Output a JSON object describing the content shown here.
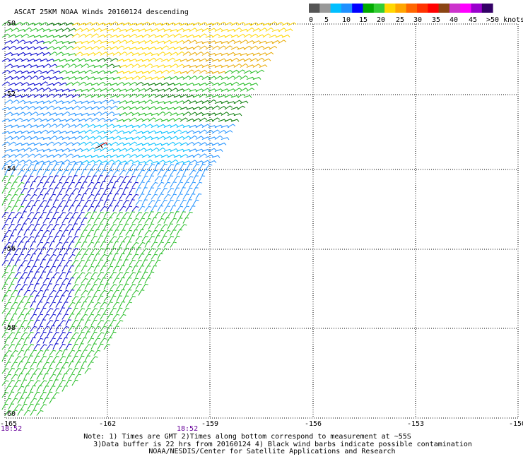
{
  "title": "ASCAT 25KM NOAA Winds 20160124 descending",
  "colorbar": {
    "colors": [
      "#555555",
      "#999999",
      "#00bfff",
      "#1e90ff",
      "#0000ff",
      "#00aa00",
      "#33cc33",
      "#ffd700",
      "#ffa500",
      "#ff6600",
      "#ff3300",
      "#ff0000",
      "#8b4513",
      "#cc33cc",
      "#ff00ff",
      "#9900cc",
      "#330066"
    ],
    "labels": [
      "0",
      "5",
      "10",
      "15",
      "20",
      "25",
      "30",
      "35",
      "40",
      "45",
      ">50 knots"
    ]
  },
  "lat_labels": [
    "-50",
    "-52",
    "-54",
    "-56",
    "-58",
    "-60"
  ],
  "lon_labels": [
    "-165",
    "-162",
    "-159",
    "-156",
    "-153",
    "-150"
  ],
  "times": [
    "18:52",
    "18:52"
  ],
  "notes": [
    "Note: 1) Times are GMT 2)Times along bottom correspond to measurement at ~55S",
    "3)Data buffer is 22 hrs from 20160124 4) Black wind barbs indicate possible contamination",
    "NOAA/NESDIS/Center for Satellite Applications and Research"
  ],
  "swath_colors": {
    "yellow": "#ffd700",
    "orange": "#e8a800",
    "dark_green": "#007700",
    "green": "#22bb22",
    "blue": "#0000cc",
    "light_blue": "#1e90ff",
    "cyan": "#00bfff",
    "red": "#cc0000",
    "black": "#000000"
  }
}
